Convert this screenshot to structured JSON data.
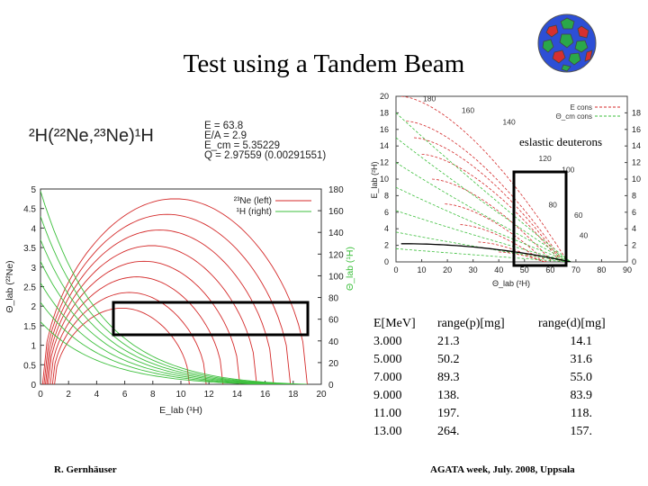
{
  "slide": {
    "title": "Test using a Tandem Beam",
    "author": "R. Gernhäuser",
    "event": "AGATA week,  July. 2008, Uppsala"
  },
  "reaction": {
    "text": "²H(²²Ne,²³Ne)¹H",
    "lines": [
      "E = 63.8",
      "E/A = 2.9",
      "E_cm = 5.35229",
      "Q = 2.97559 (0.00291551)"
    ]
  },
  "annotation": "eslastic deuterons",
  "table": {
    "headers": [
      "E[MeV]",
      "range(p)[mg]",
      "range(d)[mg]"
    ],
    "rows": [
      [
        "3.000",
        "21.3",
        "14.1"
      ],
      [
        "5.000",
        "50.2",
        "31.6"
      ],
      [
        "7.000",
        "89.3",
        "55.0"
      ],
      [
        "9.000",
        "138.",
        "83.9"
      ],
      [
        "11.00",
        "197.",
        "118."
      ],
      [
        "13.00",
        "264.",
        "157."
      ]
    ]
  },
  "colors": {
    "red": "#d42a2a",
    "green": "#3cbf3c",
    "frame": "#000000"
  },
  "chart_data": [
    {
      "type": "line",
      "title": "",
      "xlabel": "E_lab (¹H)",
      "ylabel": "Θ_lab (²²Ne)",
      "y2label": "Θ_lab (¹H)",
      "xlim": [
        0,
        20
      ],
      "ylim": [
        0,
        5
      ],
      "y2lim": [
        0,
        180
      ],
      "xticks": [
        0,
        2,
        4,
        6,
        8,
        10,
        12,
        14,
        16,
        18,
        20
      ],
      "yticks": [
        0,
        0.5,
        1,
        1.5,
        2,
        2.5,
        3,
        3.5,
        4,
        4.5,
        5
      ],
      "y2ticks": [
        0,
        20,
        40,
        60,
        80,
        100,
        120,
        140,
        160,
        180
      ],
      "legend": [
        "²³Ne (left)",
        "¹H (right)"
      ],
      "legend_position": "top-right",
      "grid": false,
      "series": [
        {
          "name": "²³Ne (left)",
          "color": "red",
          "curves": [
            {
              "x0": 0.15,
              "x1": 19.0,
              "peak": 4.75
            },
            {
              "x0": 0.25,
              "x1": 17.8,
              "peak": 4.35
            },
            {
              "x0": 0.35,
              "x1": 16.6,
              "peak": 3.95
            },
            {
              "x0": 0.45,
              "x1": 15.4,
              "peak": 3.55
            },
            {
              "x0": 0.55,
              "x1": 14.2,
              "peak": 3.15
            },
            {
              "x0": 0.7,
              "x1": 13.0,
              "peak": 2.75
            },
            {
              "x0": 0.85,
              "x1": 11.8,
              "peak": 2.35
            },
            {
              "x0": 1.0,
              "x1": 10.6,
              "peak": 1.95
            }
          ]
        },
        {
          "name": "¹H (right)",
          "color": "green",
          "curves": [
            {
              "y0": 4.95,
              "x1": 19.0
            },
            {
              "y0": 4.3,
              "x1": 18.5
            },
            {
              "y0": 3.7,
              "x1": 18.0
            },
            {
              "y0": 3.15,
              "x1": 17.5
            },
            {
              "y0": 2.6,
              "x1": 17.0
            },
            {
              "y0": 2.1,
              "x1": 16.5
            },
            {
              "y0": 1.6,
              "x1": 16.0
            }
          ]
        }
      ]
    },
    {
      "type": "line",
      "title": "",
      "xlabel": "Θ_lab (²H)",
      "ylabel": "E_lab (²H)",
      "xlim": [
        0,
        90
      ],
      "ylim": [
        0,
        20
      ],
      "y2lim": [
        0,
        20
      ],
      "xticks": [
        0,
        10,
        20,
        30,
        40,
        50,
        60,
        70,
        80,
        90
      ],
      "yticks": [
        0,
        2,
        4,
        6,
        8,
        10,
        12,
        14,
        16,
        18,
        20
      ],
      "y2ticks": [
        0,
        2,
        4,
        6,
        8,
        10,
        12,
        14,
        16,
        18
      ],
      "legend": [
        "E cons",
        "Θ_cm cons"
      ],
      "legend_position": "top-right",
      "grid": false,
      "contour_labels": [
        "180",
        "160",
        "140",
        "120",
        "100",
        "80",
        "60",
        "40"
      ]
    }
  ]
}
